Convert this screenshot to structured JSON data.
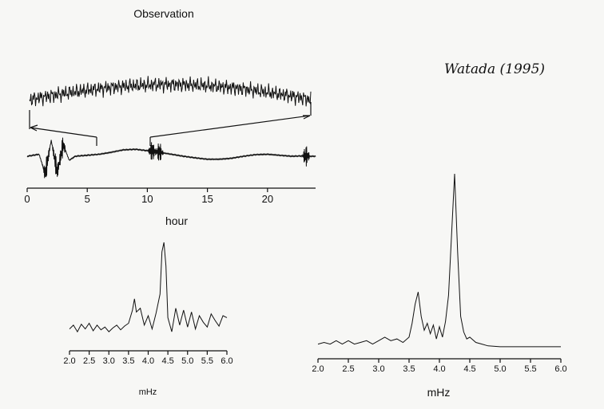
{
  "header": {
    "title": "Observation",
    "handwritten_note": "Watada (1995)"
  },
  "chart_data": [
    {
      "type": "line",
      "title": "Observation",
      "xlabel": "hour",
      "ylabel": "",
      "xlim": [
        0,
        24
      ],
      "x_ticks": [
        0,
        5,
        10,
        15,
        20
      ],
      "grid": false,
      "x": [
        0.0,
        1.0,
        1.5,
        2.0,
        2.5,
        3.0,
        3.5,
        4.0,
        5.0,
        6.0,
        7.0,
        8.0,
        9.0,
        10.0,
        11.0,
        12.0,
        13.0,
        14.0,
        15.0,
        16.0,
        17.0,
        18.0,
        19.0,
        20.0,
        21.0,
        22.0,
        23.0,
        23.5
      ],
      "y": [
        0.0,
        0.1,
        -0.9,
        0.8,
        -0.8,
        0.6,
        -0.2,
        0.0,
        0.05,
        0.1,
        0.2,
        0.32,
        0.35,
        0.28,
        0.2,
        0.1,
        0.0,
        -0.08,
        -0.15,
        -0.15,
        -0.1,
        0.0,
        0.08,
        0.1,
        0.05,
        0.0,
        0.02,
        0.0
      ],
      "spikes_at_hour": [
        1.6,
        2.4,
        2.9,
        10.4,
        11.0,
        23.2
      ],
      "zoom_window_hours": [
        6.0,
        23.2
      ],
      "zoom_envelope": "rising then falling, peak near 11 hour"
    },
    {
      "type": "line",
      "title": "",
      "xlabel": "mHz",
      "ylabel": "",
      "xlim": [
        2.0,
        6.0
      ],
      "x_ticks": [
        2.0,
        2.5,
        3.0,
        3.5,
        4.0,
        4.5,
        5.0,
        5.5,
        6.0
      ],
      "grid": false,
      "x": [
        2.0,
        2.1,
        2.2,
        2.3,
        2.4,
        2.5,
        2.6,
        2.7,
        2.8,
        2.9,
        3.0,
        3.1,
        3.2,
        3.3,
        3.4,
        3.5,
        3.6,
        3.65,
        3.7,
        3.8,
        3.9,
        4.0,
        4.1,
        4.2,
        4.3,
        4.35,
        4.4,
        4.45,
        4.5,
        4.6,
        4.7,
        4.8,
        4.9,
        5.0,
        5.1,
        5.2,
        5.3,
        5.4,
        5.5,
        5.6,
        5.7,
        5.8,
        5.9,
        6.0
      ],
      "y": [
        0.08,
        0.12,
        0.05,
        0.13,
        0.08,
        0.14,
        0.06,
        0.12,
        0.07,
        0.1,
        0.05,
        0.09,
        0.12,
        0.07,
        0.11,
        0.14,
        0.28,
        0.4,
        0.26,
        0.3,
        0.12,
        0.22,
        0.08,
        0.25,
        0.45,
        0.9,
        1.0,
        0.75,
        0.2,
        0.05,
        0.3,
        0.12,
        0.28,
        0.1,
        0.26,
        0.08,
        0.22,
        0.15,
        0.1,
        0.24,
        0.17,
        0.11,
        0.22,
        0.2
      ]
    },
    {
      "type": "line",
      "title": "",
      "xlabel": "mHz",
      "ylabel": "",
      "xlim": [
        2.0,
        6.0
      ],
      "x_ticks": [
        2.0,
        2.5,
        3.0,
        3.5,
        4.0,
        4.5,
        5.0,
        5.5,
        6.0
      ],
      "grid": false,
      "x": [
        2.0,
        2.1,
        2.2,
        2.3,
        2.4,
        2.5,
        2.6,
        2.7,
        2.8,
        2.9,
        3.0,
        3.1,
        3.2,
        3.3,
        3.4,
        3.5,
        3.55,
        3.6,
        3.65,
        3.7,
        3.75,
        3.8,
        3.85,
        3.9,
        3.95,
        4.0,
        4.05,
        4.1,
        4.15,
        4.2,
        4.25,
        4.3,
        4.35,
        4.4,
        4.45,
        4.5,
        4.6,
        4.7,
        4.8,
        5.0,
        5.5,
        6.0
      ],
      "y": [
        0.02,
        0.03,
        0.02,
        0.04,
        0.02,
        0.04,
        0.02,
        0.03,
        0.04,
        0.02,
        0.04,
        0.06,
        0.04,
        0.05,
        0.03,
        0.06,
        0.14,
        0.25,
        0.32,
        0.18,
        0.1,
        0.14,
        0.08,
        0.13,
        0.05,
        0.12,
        0.06,
        0.15,
        0.3,
        0.65,
        1.0,
        0.55,
        0.18,
        0.09,
        0.05,
        0.06,
        0.03,
        0.02,
        0.01,
        0.005,
        0.005,
        0.005
      ]
    }
  ]
}
